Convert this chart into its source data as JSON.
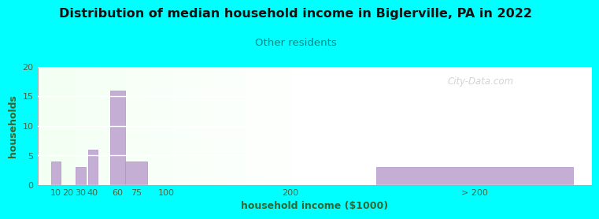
{
  "title": "Distribution of median household income in Biglerville, PA in 2022",
  "subtitle": "Other residents",
  "xlabel": "household income ($1000)",
  "ylabel": "households",
  "background_color": "#00FFFF",
  "bar_color": "#c4aed4",
  "bar_edgecolor": "#b090c8",
  "subtitle_color": "#008888",
  "title_color": "#111111",
  "axis_label_color": "#336633",
  "tick_color": "#446644",
  "watermark": "City-Data.com",
  "ylim": [
    0,
    20
  ],
  "yticks": [
    0,
    5,
    10,
    15,
    20
  ],
  "bar_centers": [
    10,
    20,
    30,
    40,
    60,
    75,
    100,
    200,
    350
  ],
  "bar_heights": [
    4,
    0,
    3,
    6,
    16,
    4,
    0,
    0,
    3
  ],
  "bar_widths": [
    8,
    8,
    8,
    8,
    12,
    18,
    18,
    18,
    160
  ],
  "xtick_positions": [
    10,
    20,
    30,
    40,
    60,
    75,
    100,
    200,
    350
  ],
  "xtick_labels": [
    "10",
    "20",
    "30",
    "40",
    "60",
    "75",
    "100",
    "200",
    "> 200"
  ],
  "xlim": [
    -5,
    445
  ]
}
